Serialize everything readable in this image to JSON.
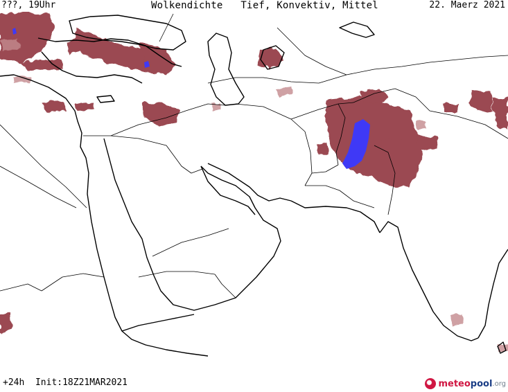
{
  "header": {
    "left": "???, 19Uhr",
    "center": "Wolkendichte   Tief, Konvektiv, Mittel",
    "right": "22. Maerz 2021"
  },
  "footer": {
    "run": "+24h  Init:18Z21MAR2021"
  },
  "logo": {
    "part1": "meteo",
    "part2": "pool",
    "part3": ".org"
  },
  "colors": {
    "cloud_dense": "#8a2b34",
    "cloud_light": "#c48a8e",
    "convective": "#3a39ff",
    "coast": "#000000",
    "border": "#000000"
  }
}
